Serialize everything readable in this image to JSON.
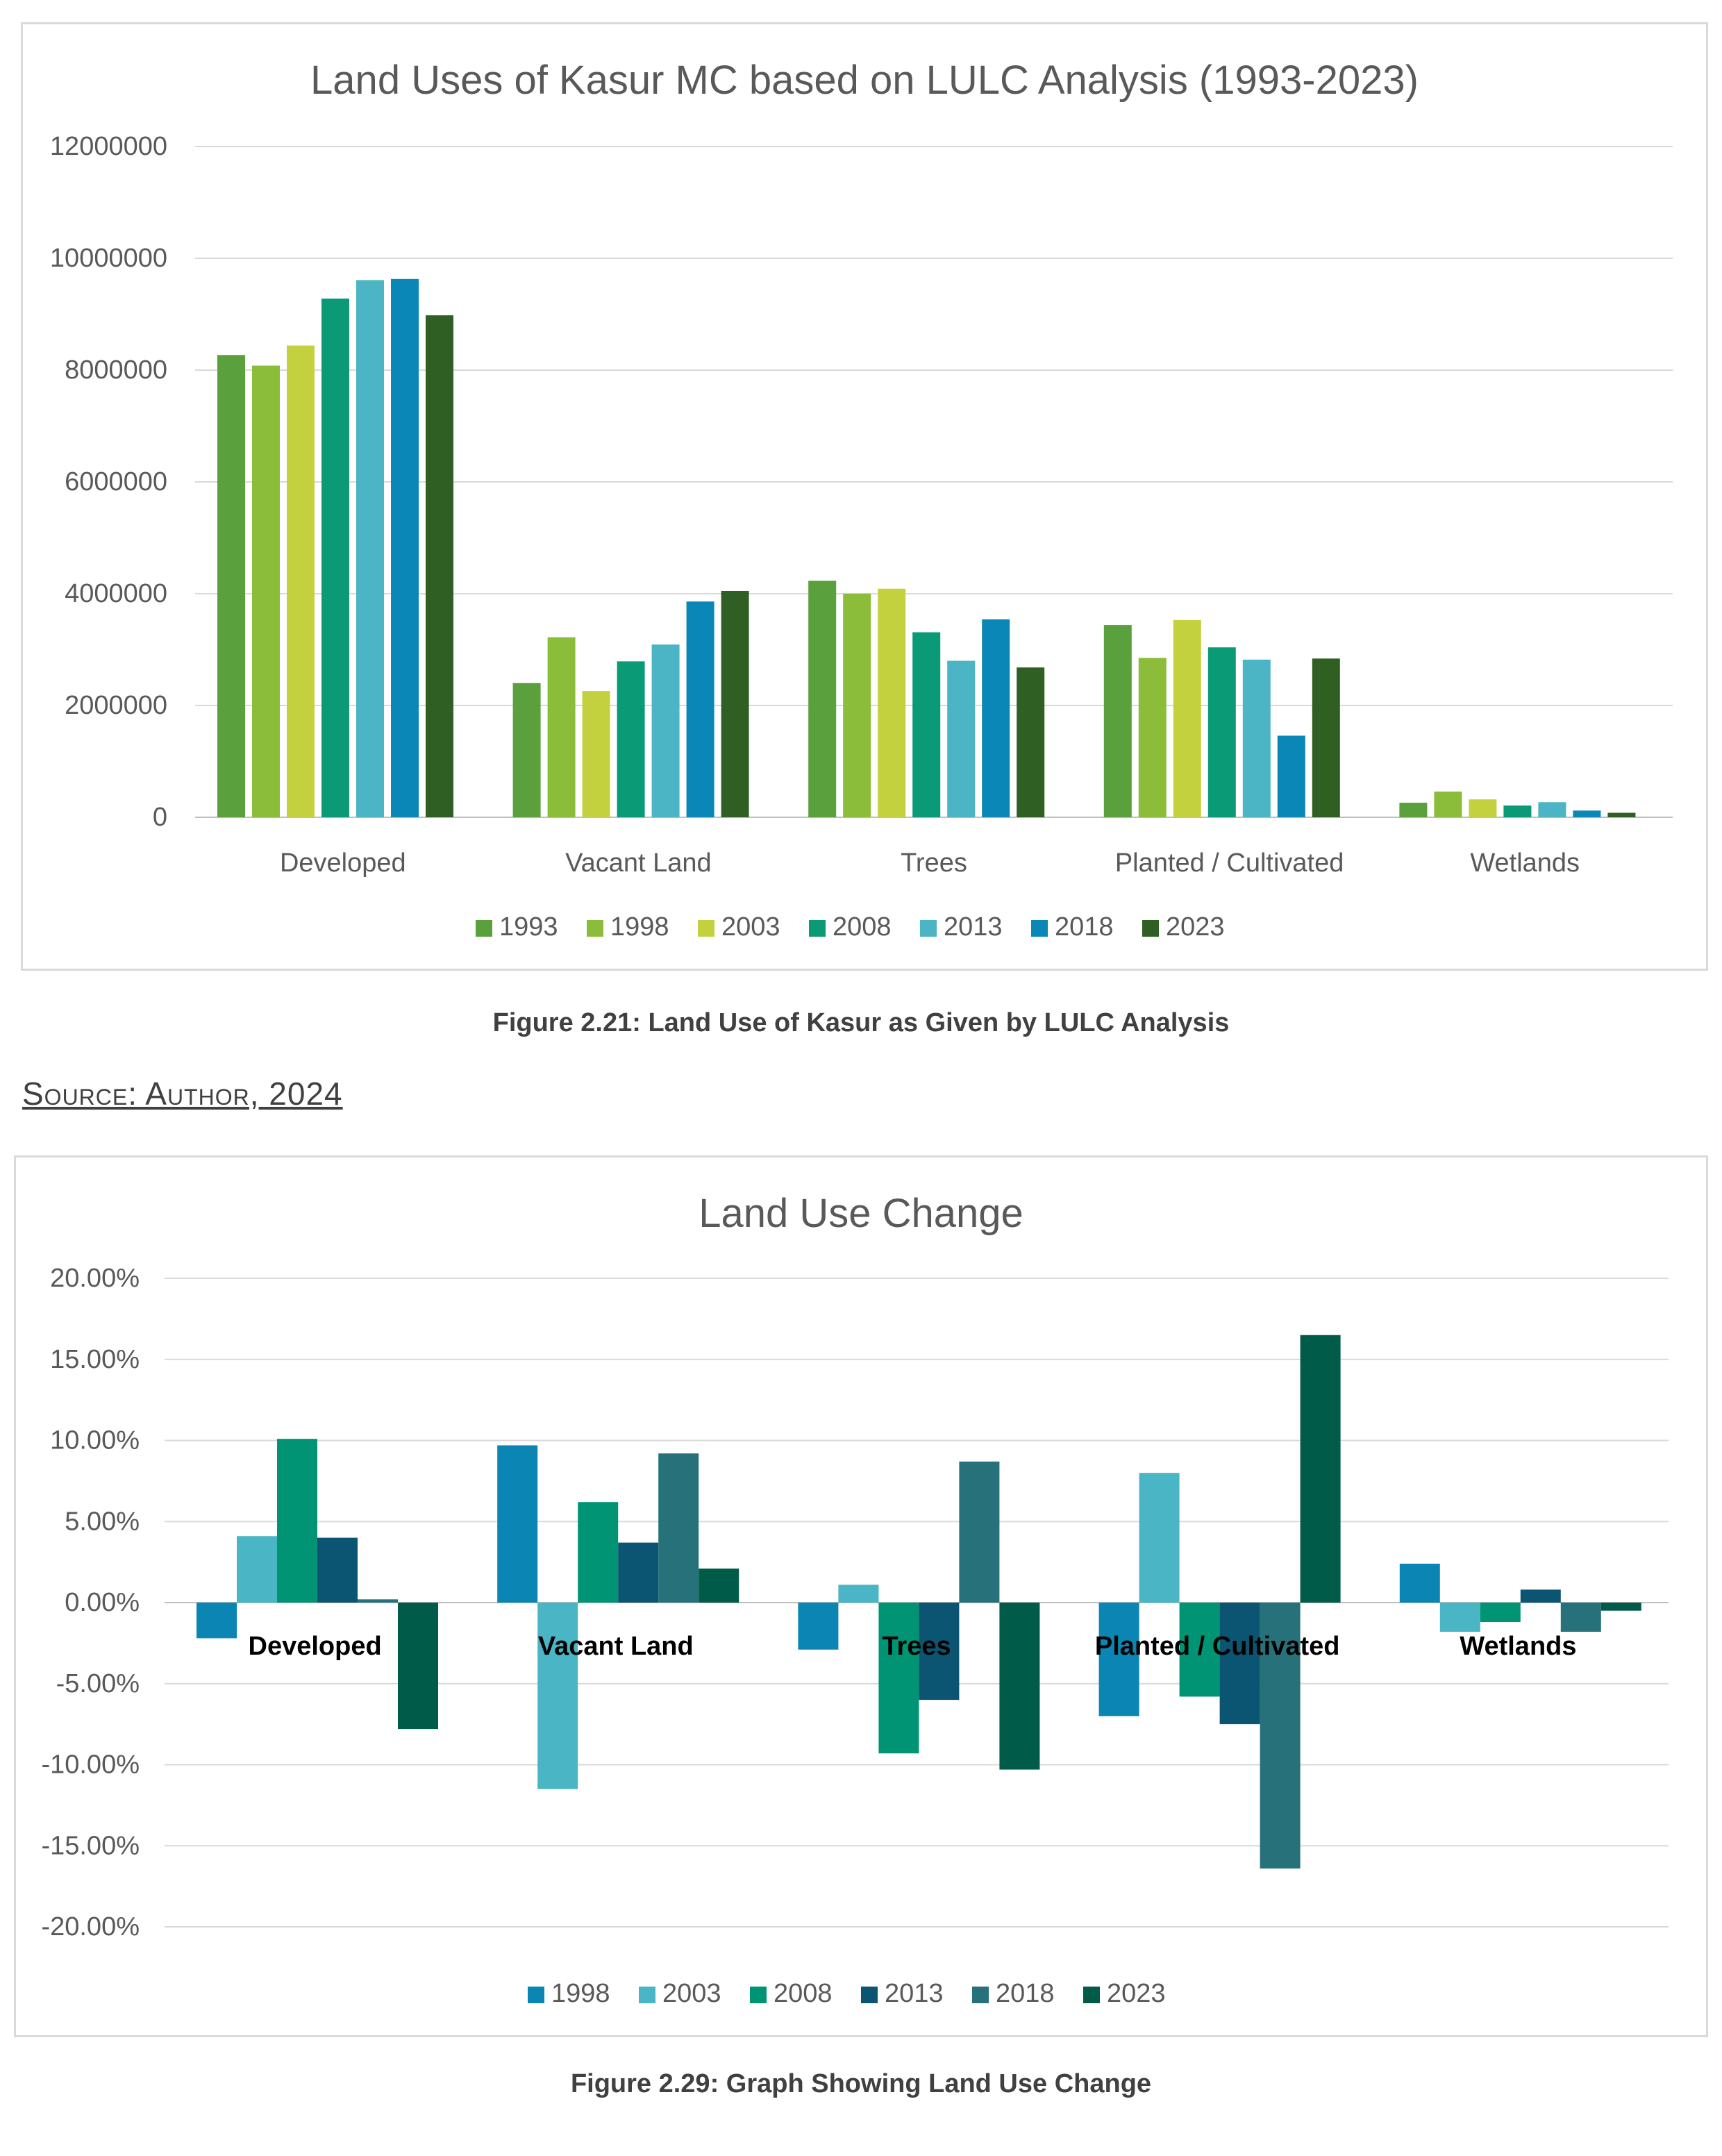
{
  "figures": [
    {
      "caption": "Figure 2.21: Land Use of Kasur as Given by LULC Analysis",
      "source": "Source: Author, 2024"
    },
    {
      "caption": "Figure 2.29: Graph Showing Land Use Change"
    }
  ],
  "chart_data": [
    {
      "type": "bar",
      "title": "Land Uses of Kasur MC based on LULC Analysis (1993-2023)",
      "xlabel": "",
      "ylabel": "",
      "ylim": [
        0,
        12000000
      ],
      "yticks": [
        "0",
        "2000000",
        "4000000",
        "6000000",
        "8000000",
        "10000000",
        "12000000"
      ],
      "grid": true,
      "legend_position": "bottom",
      "categories": [
        "Developed",
        "Vacant Land",
        "Trees",
        "Planted / Cultivated",
        "Wetlands"
      ],
      "series": [
        {
          "name": "1993",
          "color": "#5aa03c",
          "values": [
            8270000,
            2400000,
            4230000,
            3440000,
            260000
          ]
        },
        {
          "name": "1998",
          "color": "#8bbd3a",
          "values": [
            8080000,
            3220000,
            4000000,
            2850000,
            460000
          ]
        },
        {
          "name": "2003",
          "color": "#c4d13f",
          "values": [
            8440000,
            2260000,
            4090000,
            3530000,
            320000
          ]
        },
        {
          "name": "2008",
          "color": "#0b9a76",
          "values": [
            9280000,
            2790000,
            3310000,
            3040000,
            210000
          ]
        },
        {
          "name": "2013",
          "color": "#4bb5c6",
          "values": [
            9610000,
            3090000,
            2800000,
            2820000,
            270000
          ]
        },
        {
          "name": "2018",
          "color": "#0a87b7",
          "values": [
            9630000,
            3860000,
            3540000,
            1460000,
            120000
          ]
        },
        {
          "name": "2023",
          "color": "#2f5f22",
          "values": [
            8980000,
            4050000,
            2680000,
            2840000,
            80000
          ]
        }
      ]
    },
    {
      "type": "bar",
      "title": "Land Use Change",
      "xlabel": "",
      "ylabel": "",
      "ylim": [
        -0.2,
        0.2
      ],
      "yticks": [
        "-20.00%",
        "-15.00%",
        "-10.00%",
        "-5.00%",
        "0.00%",
        "5.00%",
        "10.00%",
        "15.00%",
        "20.00%"
      ],
      "grid": true,
      "legend_position": "bottom",
      "categories": [
        "Developed",
        "Vacant Land",
        "Trees",
        "Planted / Cultivated",
        "Wetlands"
      ],
      "series": [
        {
          "name": "1998",
          "color": "#0b86b4",
          "values": [
            -0.022,
            0.097,
            -0.029,
            -0.07,
            0.024
          ]
        },
        {
          "name": "2003",
          "color": "#4ab5c5",
          "values": [
            0.041,
            -0.115,
            0.011,
            0.08,
            -0.018
          ]
        },
        {
          "name": "2008",
          "color": "#009474",
          "values": [
            0.101,
            0.062,
            -0.093,
            -0.058,
            -0.012
          ]
        },
        {
          "name": "2013",
          "color": "#0b5573",
          "values": [
            0.04,
            0.037,
            -0.06,
            -0.075,
            0.008
          ]
        },
        {
          "name": "2018",
          "color": "#27727a",
          "values": [
            0.002,
            0.092,
            0.087,
            -0.164,
            -0.018
          ]
        },
        {
          "name": "2023",
          "color": "#005c48",
          "values": [
            -0.078,
            0.021,
            -0.103,
            0.165,
            -0.005
          ]
        }
      ]
    }
  ]
}
